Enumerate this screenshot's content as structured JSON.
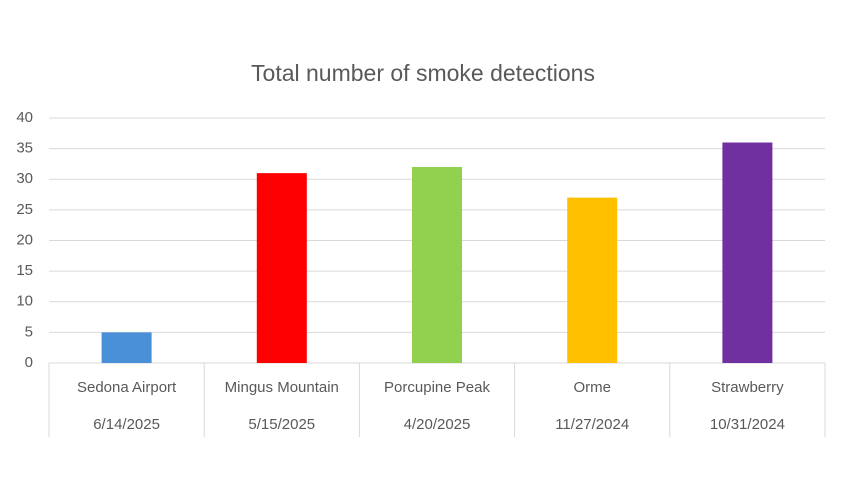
{
  "chart_data": {
    "type": "bar",
    "title": "Total number of smoke detections",
    "categories": [
      "Sedona Airport",
      "Mingus Mountain",
      "Porcupine Peak",
      "Orme",
      "Strawberry"
    ],
    "category_dates": [
      "6/14/2025",
      "5/15/2025",
      "4/20/2025",
      "11/27/2024",
      "10/31/2024"
    ],
    "values": [
      5,
      31,
      32,
      27,
      36
    ],
    "colors": [
      "#4a90d9",
      "#ff0000",
      "#92d050",
      "#ffc000",
      "#7030a0"
    ],
    "ylim": [
      0,
      40
    ],
    "yticks": [
      0,
      5,
      10,
      15,
      20,
      25,
      30,
      35,
      40
    ],
    "grid": true
  }
}
